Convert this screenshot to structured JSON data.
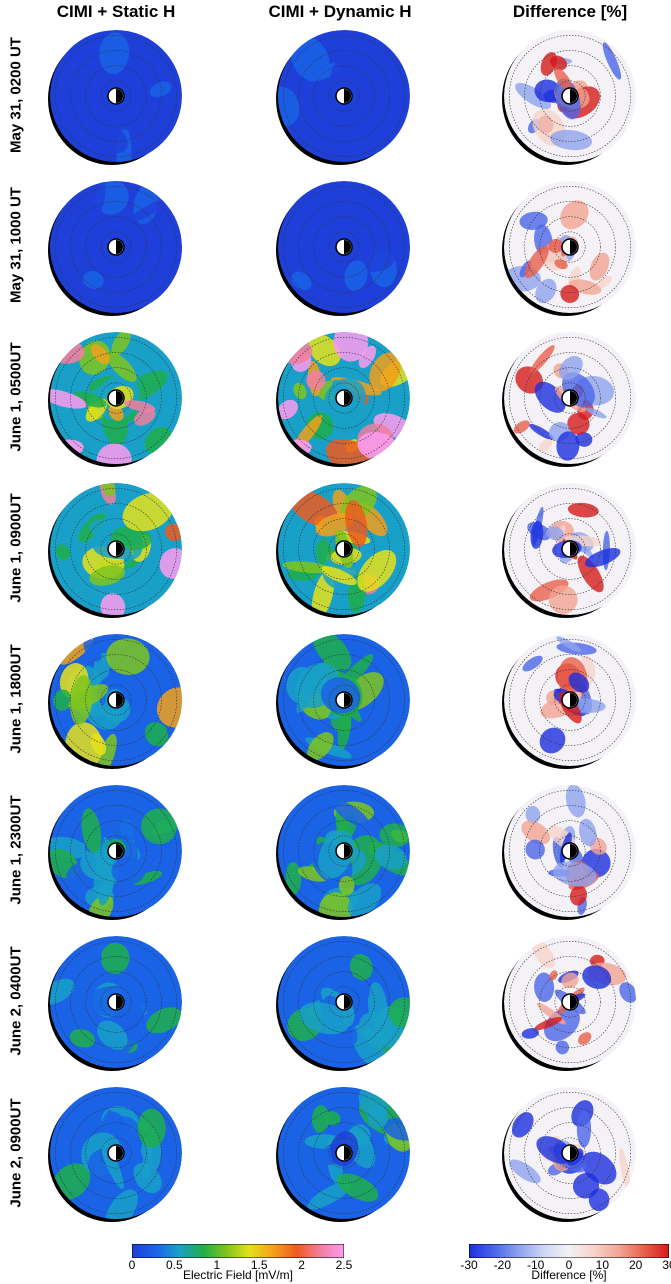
{
  "columns": [
    {
      "title": "CIMI + Static H",
      "kind": "field"
    },
    {
      "title": "CIMI + Dynamic H",
      "kind": "field"
    },
    {
      "title": "Difference [%]",
      "kind": "diff"
    }
  ],
  "rows": [
    {
      "label": "May 31, 0200 UT",
      "level": 0.1,
      "hot": 0.0
    },
    {
      "label": "May 31, 1000 UT",
      "level": 0.1,
      "hot": 0.0
    },
    {
      "label": "June 1, 0500UT",
      "level": 0.85,
      "hot": 0.9
    },
    {
      "label": "June 1, 0900UT",
      "level": 0.7,
      "hot": 0.4
    },
    {
      "label": "June 1, 1800UT",
      "level": 0.45,
      "hot": 0.2
    },
    {
      "label": "June 1, 2300UT",
      "level": 0.4,
      "hot": 0.15
    },
    {
      "label": "June 2, 0400UT",
      "level": 0.3,
      "hot": 0.1
    },
    {
      "label": "June 2, 0900UT",
      "level": 0.3,
      "hot": 0.05
    }
  ],
  "colorbars": {
    "field": {
      "label": "Electric Field [mV/m]",
      "ticks": [
        "0",
        "0.5",
        "1",
        "1.5",
        "2",
        "2.5"
      ],
      "colors": [
        "#1f3fd9",
        "#1a63e6",
        "#19a0c8",
        "#1fae4a",
        "#7fc41d",
        "#e6e01a",
        "#f2a01a",
        "#ef5a1e",
        "#f07fa0",
        "#ff9bf0"
      ]
    },
    "diff": {
      "label": "Difference [%]",
      "ticks": [
        "-30",
        "-20",
        "-10",
        "0",
        "10",
        "20",
        "30"
      ],
      "colors": [
        "#1c2fe0",
        "#4b66e8",
        "#8ea2ef",
        "#cfd6f5",
        "#f2f2f5",
        "#f6d3cb",
        "#f2a493",
        "#e8604e",
        "#d41a1a"
      ]
    }
  }
}
